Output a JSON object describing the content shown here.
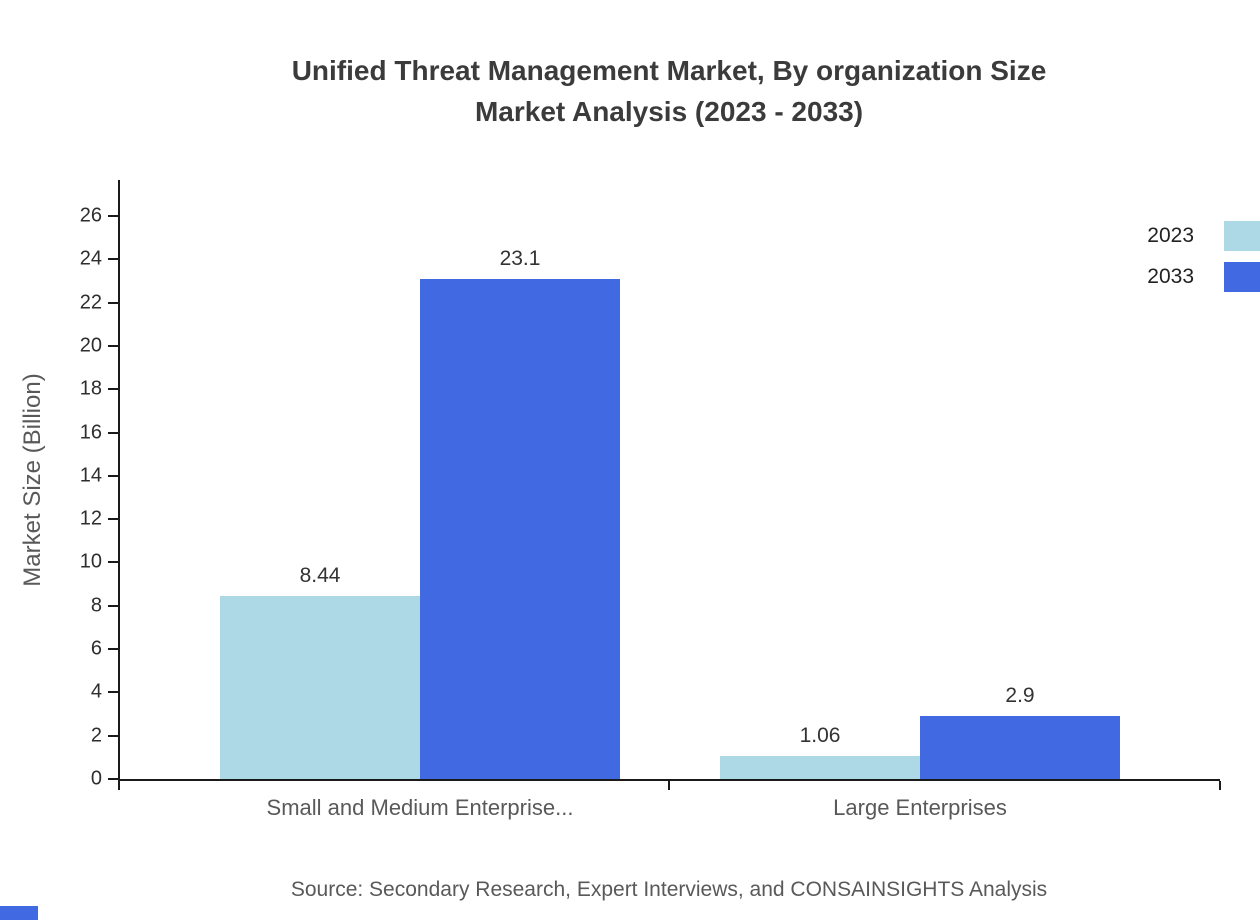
{
  "title": {
    "line1": "Unified Threat Management Market, By organization Size",
    "line2": "Market Analysis (2023 - 2033)"
  },
  "source": "Source: Secondary Research, Expert Interviews, and CONSAINSIGHTS Analysis",
  "colors": {
    "series_2023": "#add8e6",
    "series_2033": "#4169e1",
    "axis": "#1a1a1a",
    "title_text": "#3b3b3b",
    "muted_text": "#595959",
    "value_text": "#333333",
    "corner_accent": "#4169e1"
  },
  "chart_data": {
    "type": "bar",
    "title": "Unified Threat Management Market, By organization Size Market Analysis (2023 - 2033)",
    "categories": [
      "Small and Medium Enterprise...",
      "Large Enterprises"
    ],
    "series": [
      {
        "name": "2023",
        "color": "#add8e6",
        "values": [
          8.44,
          1.06
        ],
        "labels": [
          "8.44",
          "1.06"
        ]
      },
      {
        "name": "2033",
        "color": "#4169e1",
        "values": [
          23.1,
          2.9
        ],
        "labels": [
          "23.1",
          "2.9"
        ]
      }
    ],
    "xlabel": "",
    "ylabel": "Market Size (Billion)",
    "ylim": [
      0,
      26
    ],
    "ytick_step": 2,
    "grid": false,
    "legend_position": "top-right"
  }
}
